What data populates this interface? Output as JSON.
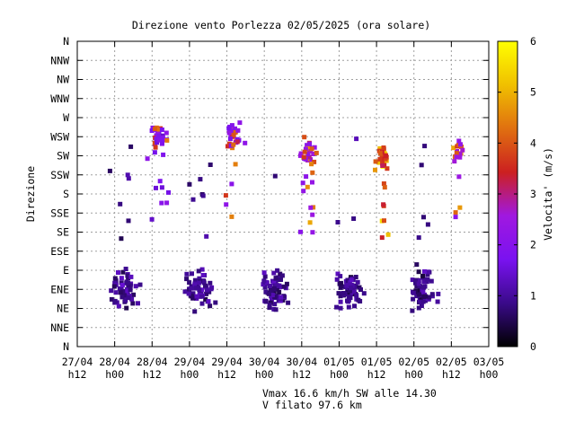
{
  "chart_data": {
    "type": "scatter",
    "title": "Direzione vento Porlezza 02/05/2025 (ora solare)",
    "ylabel": "Direzione",
    "colorbar_label": "Velocita' (m/s)",
    "colorbar_range": [
      0,
      6
    ],
    "colorbar_ticks": [
      "0",
      "1",
      "2",
      "3",
      "4",
      "5",
      "6"
    ],
    "colormap": [
      "#000000",
      "#3a0a8a",
      "#7a12f0",
      "#a018e0",
      "#cc2020",
      "#e07010",
      "#f0c000",
      "#ffff00"
    ],
    "y_categories": [
      "N",
      "NNE",
      "NE",
      "ENE",
      "E",
      "ESE",
      "SE",
      "SSE",
      "S",
      "SSW",
      "SW",
      "WSW",
      "W",
      "WNW",
      "NW",
      "NNW",
      "N"
    ],
    "x_tick_labels": [
      [
        "27/04",
        "h12"
      ],
      [
        "28/04",
        "h00"
      ],
      [
        "28/04",
        "h12"
      ],
      [
        "29/04",
        "h00"
      ],
      [
        "29/04",
        "h12"
      ],
      [
        "30/04",
        "h00"
      ],
      [
        "30/04",
        "h12"
      ],
      [
        "01/05",
        "h00"
      ],
      [
        "01/05",
        "h12"
      ],
      [
        "02/05",
        "h00"
      ],
      [
        "02/05",
        "h12"
      ],
      [
        "03/05",
        "h00"
      ]
    ],
    "x_range_hours": [
      0,
      132
    ],
    "grid": true,
    "clusters": [
      {
        "day": 0,
        "kind": "night",
        "center_h": 15,
        "spread_h": 4,
        "dir": 3.0,
        "dir_spread": 0.9,
        "speed": 0.9,
        "n": 70
      },
      {
        "day": 0,
        "kind": "day",
        "center_h": 26,
        "spread_h": 2.5,
        "dir": 11.0,
        "dir_spread": 0.7,
        "speed": 1.9,
        "n": 40
      },
      {
        "day": 1,
        "kind": "night",
        "center_h": 39,
        "spread_h": 4,
        "dir": 3.0,
        "dir_spread": 0.9,
        "speed": 0.9,
        "n": 70
      },
      {
        "day": 1,
        "kind": "day",
        "center_h": 50,
        "spread_h": 2.5,
        "dir": 11.0,
        "dir_spread": 0.7,
        "speed": 2.0,
        "n": 38
      },
      {
        "day": 2,
        "kind": "night",
        "center_h": 63,
        "spread_h": 4,
        "dir": 3.0,
        "dir_spread": 0.9,
        "speed": 0.9,
        "n": 70
      },
      {
        "day": 2,
        "kind": "day",
        "center_h": 74,
        "spread_h": 2.5,
        "dir": 10.2,
        "dir_spread": 0.7,
        "speed": 2.4,
        "n": 40
      },
      {
        "day": 3,
        "kind": "night",
        "center_h": 87,
        "spread_h": 4,
        "dir": 3.0,
        "dir_spread": 0.9,
        "speed": 0.9,
        "n": 70
      },
      {
        "day": 3,
        "kind": "day",
        "center_h": 98,
        "spread_h": 2.0,
        "dir": 10.0,
        "dir_spread": 0.6,
        "speed": 3.6,
        "n": 42
      },
      {
        "day": 4,
        "kind": "night",
        "center_h": 111,
        "spread_h": 4,
        "dir": 3.0,
        "dir_spread": 0.9,
        "speed": 0.9,
        "n": 70
      },
      {
        "day": 4,
        "kind": "day",
        "center_h": 122,
        "spread_h": 1.5,
        "dir": 10.2,
        "dir_spread": 0.6,
        "speed": 2.5,
        "n": 25
      }
    ],
    "footer": [
      "Vmax 16.6 km/h SW alle 14.30",
      "V filato 97.6 km"
    ]
  }
}
